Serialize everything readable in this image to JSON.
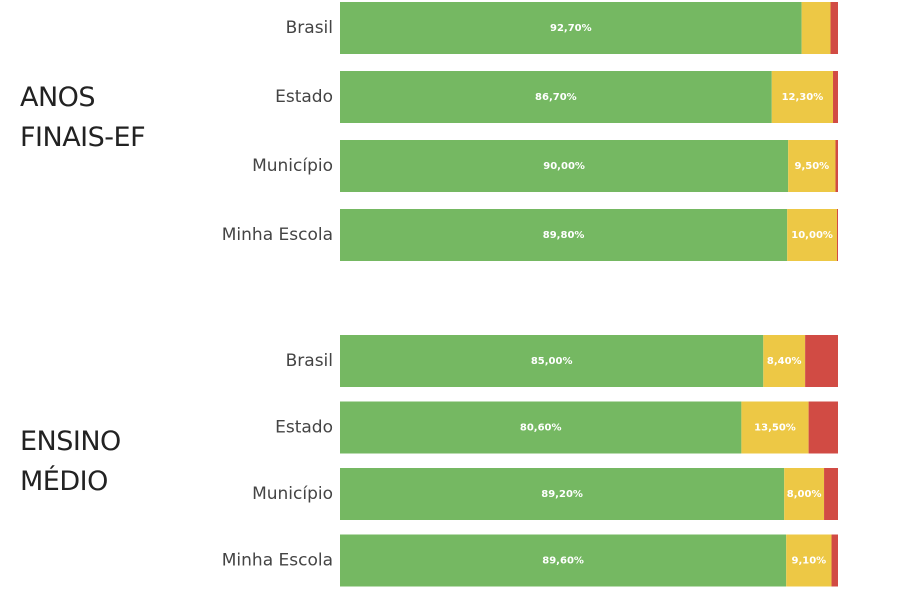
{
  "chart_data": [
    {
      "type": "bar",
      "orientation": "horizontal",
      "stacked": true,
      "title": "ANOS FINAIS-EF",
      "categories": [
        "Brasil",
        "Estado",
        "Município",
        "Minha Escola"
      ],
      "xlim": [
        0,
        100
      ],
      "series": [
        {
          "color": "#75b862",
          "values": [
            92.7,
            86.7,
            90.0,
            89.8
          ],
          "value_labels": [
            "92,70%",
            "86,70%",
            "90,00%",
            "89,80%"
          ]
        },
        {
          "color": "#edc845",
          "values": [
            5.8,
            12.3,
            9.5,
            10.0
          ],
          "value_labels": [
            null,
            "12,30%",
            "9,50%",
            "10,00%"
          ]
        },
        {
          "color": "#d14b44",
          "values": [
            1.5,
            1.0,
            0.5,
            0.2
          ]
        }
      ]
    },
    {
      "type": "bar",
      "orientation": "horizontal",
      "stacked": true,
      "title": "ENSINO MÉDIO",
      "categories": [
        "Brasil",
        "Estado",
        "Município",
        "Minha Escola"
      ],
      "xlim": [
        0,
        100
      ],
      "series": [
        {
          "color": "#75b862",
          "values": [
            85.0,
            80.6,
            89.2,
            89.6
          ],
          "value_labels": [
            "85,00%",
            "80,60%",
            "89,20%",
            "89,60%"
          ]
        },
        {
          "color": "#edc845",
          "values": [
            8.4,
            13.5,
            8.0,
            9.1
          ],
          "value_labels": [
            "8,40%",
            "13,50%",
            "8,00%",
            "9,10%"
          ]
        },
        {
          "color": "#d14b44",
          "values": [
            6.6,
            5.9,
            2.8,
            1.3
          ]
        }
      ]
    }
  ]
}
